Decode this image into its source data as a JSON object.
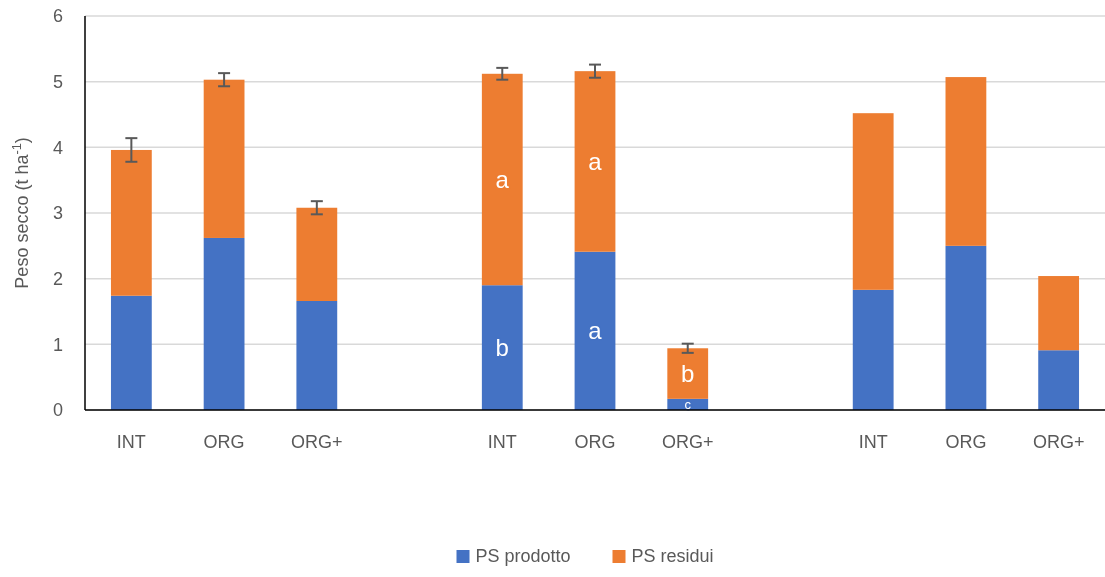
{
  "chart_data": {
    "type": "bar",
    "stacked": true,
    "ylabel": "Peso secco (t ha$^{-1}$)",
    "categories": [
      "INT",
      "ORG",
      "ORG+",
      null,
      "INT",
      "ORG",
      "ORG+",
      null,
      "INT",
      "ORG",
      "ORG+"
    ],
    "series": [
      {
        "name": "PS prodotto",
        "color": "#4472c4",
        "values": [
          1.74,
          2.62,
          1.66,
          null,
          1.9,
          2.41,
          0.17,
          null,
          1.83,
          2.5,
          0.91
        ],
        "value_labels": [
          null,
          null,
          null,
          null,
          "b",
          "a",
          "c",
          null,
          null,
          null,
          null
        ]
      },
      {
        "name": "PS residui",
        "color": "#ed7d31",
        "values": [
          2.22,
          2.41,
          1.42,
          null,
          3.22,
          2.75,
          0.77,
          null,
          2.69,
          2.57,
          1.13
        ],
        "value_labels": [
          null,
          null,
          null,
          null,
          "a",
          "a",
          "b",
          null,
          null,
          null,
          null
        ],
        "errors": [
          0.18,
          0.1,
          0.1,
          null,
          0.09,
          0.1,
          0.07,
          null,
          null,
          null,
          null
        ]
      }
    ],
    "ylim": [
      0,
      6
    ],
    "yticks": [
      0,
      1,
      2,
      3,
      4,
      5,
      6
    ],
    "grid": "y",
    "legend": "bottom"
  }
}
